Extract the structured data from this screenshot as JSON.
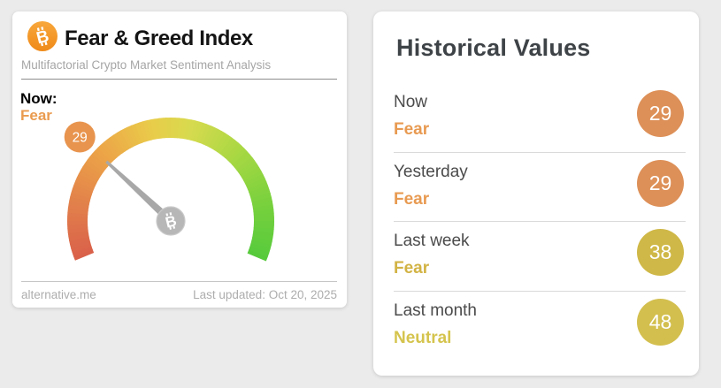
{
  "app": {
    "background_color": "#ebebeb"
  },
  "gauge_card": {
    "title": "Fear & Greed Index",
    "subtitle": "Multifactorial Crypto Market Sentiment Analysis",
    "now_label": "Now:",
    "now_sentiment": "Fear",
    "now_sentiment_color": "#ea9b4f",
    "footer_left": "alternative.me",
    "footer_right": "Last updated: Oct 20, 2025",
    "bitcoin_brand_color": "#f7931a"
  },
  "chart_data": {
    "type": "gauge",
    "title": "Fear & Greed Index",
    "value": 29,
    "min": 0,
    "max": 100,
    "value_label": "Fear",
    "arc_span_degrees": 225,
    "color_stops": [
      {
        "t": 0.0,
        "c": "#d9604a"
      },
      {
        "t": 0.15,
        "c": "#e2814b"
      },
      {
        "t": 0.3,
        "c": "#eca447"
      },
      {
        "t": 0.45,
        "c": "#e9cc4a"
      },
      {
        "t": 0.55,
        "c": "#d8da4e"
      },
      {
        "t": 0.7,
        "c": "#a8d843"
      },
      {
        "t": 0.85,
        "c": "#79d13d"
      },
      {
        "t": 1.0,
        "c": "#56ca3c"
      }
    ],
    "needle_color": "#a8a8a8",
    "hub_color": "#b7b7b7",
    "badge_color": "#e8944e",
    "badge_text_color": "#ffffff"
  },
  "historical": {
    "heading": "Historical Values",
    "rows": [
      {
        "period": "Now",
        "sentiment": "Fear",
        "value": "29",
        "text_color": "#e89a51",
        "badge_color": "#dd9058"
      },
      {
        "period": "Yesterday",
        "sentiment": "Fear",
        "value": "29",
        "text_color": "#e89a51",
        "badge_color": "#dd9058"
      },
      {
        "period": "Last week",
        "sentiment": "Fear",
        "value": "38",
        "text_color": "#d2b344",
        "badge_color": "#cfb847"
      },
      {
        "period": "Last month",
        "sentiment": "Neutral",
        "value": "48",
        "text_color": "#d5c44e",
        "badge_color": "#d3bf4e"
      }
    ]
  }
}
